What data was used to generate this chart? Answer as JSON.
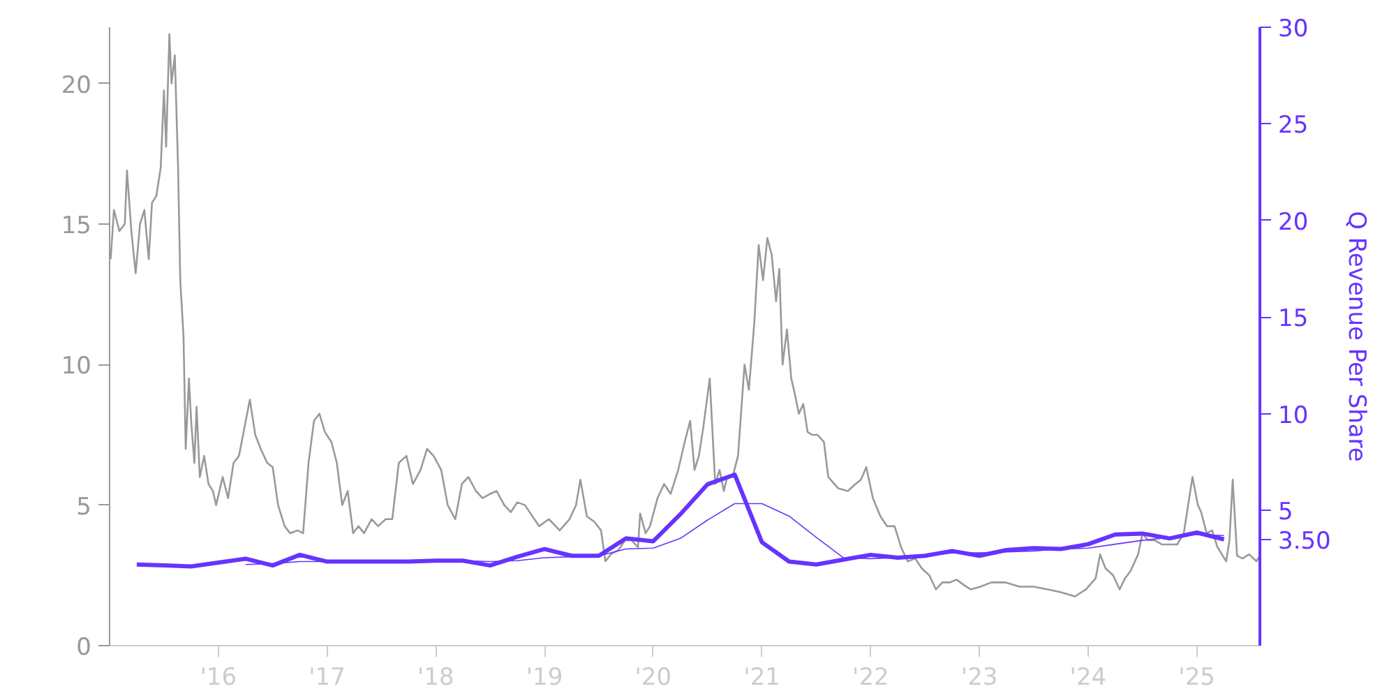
{
  "chart_data": {
    "type": "line",
    "y2label": "Q Revenue Per Share",
    "xlim": [
      2015.0,
      2025.58
    ],
    "xticks": [
      {
        "value": 2016,
        "label": "'16"
      },
      {
        "value": 2017,
        "label": "'17"
      },
      {
        "value": 2018,
        "label": "'18"
      },
      {
        "value": 2019,
        "label": "'19"
      },
      {
        "value": 2020,
        "label": "'20"
      },
      {
        "value": 2021,
        "label": "'21"
      },
      {
        "value": 2022,
        "label": "'22"
      },
      {
        "value": 2023,
        "label": "'23"
      },
      {
        "value": 2024,
        "label": "'24"
      },
      {
        "value": 2025,
        "label": "'25"
      }
    ],
    "ylim": [
      0,
      22
    ],
    "yticks": [
      0,
      5,
      10,
      15,
      20
    ],
    "y2lim": [
      -2,
      30
    ],
    "y2ticks": [
      {
        "value": 3.5,
        "label": "3.50"
      },
      5,
      10,
      15,
      20,
      25,
      30
    ],
    "series": [
      {
        "color": "#999999",
        "axis": "y",
        "x": [
          2015.01,
          2015.04,
          2015.09,
          2015.14,
          2015.16,
          2015.2,
          2015.24,
          2015.28,
          2015.32,
          2015.36,
          2015.39,
          2015.43,
          2015.47,
          2015.5,
          2015.52,
          2015.55,
          2015.57,
          2015.6,
          2015.63,
          2015.65,
          2015.68,
          2015.7,
          2015.73,
          2015.75,
          2015.78,
          2015.8,
          2015.83,
          2015.87,
          2015.91,
          2015.95,
          2015.98,
          2016.04,
          2016.09,
          2016.14,
          2016.19,
          2016.24,
          2016.29,
          2016.34,
          2016.39,
          2016.45,
          2016.5,
          2016.55,
          2016.61,
          2016.66,
          2016.73,
          2016.78,
          2016.83,
          2016.88,
          2016.93,
          2016.98,
          2017.04,
          2017.09,
          2017.14,
          2017.19,
          2017.24,
          2017.29,
          2017.34,
          2017.41,
          2017.47,
          2017.54,
          2017.6,
          2017.66,
          2017.73,
          2017.79,
          2017.86,
          2017.92,
          2017.98,
          2018.05,
          2018.11,
          2018.18,
          2018.24,
          2018.3,
          2018.37,
          2018.43,
          2018.5,
          2018.56,
          2018.63,
          2018.69,
          2018.75,
          2018.82,
          2018.95,
          2019.04,
          2019.14,
          2019.23,
          2019.29,
          2019.33,
          2019.39,
          2019.46,
          2019.52,
          2019.56,
          2019.61,
          2019.68,
          2019.74,
          2019.8,
          2019.86,
          2019.88,
          2019.93,
          2019.97,
          2020.04,
          2020.1,
          2020.16,
          2020.23,
          2020.29,
          2020.34,
          2020.38,
          2020.42,
          2020.46,
          2020.52,
          2020.57,
          2020.61,
          2020.65,
          2020.68,
          2020.73,
          2020.78,
          2020.84,
          2020.88,
          2020.93,
          2020.97,
          2021.01,
          2021.05,
          2021.09,
          2021.13,
          2021.16,
          2021.19,
          2021.23,
          2021.27,
          2021.3,
          2021.34,
          2021.38,
          2021.42,
          2021.46,
          2021.51,
          2021.57,
          2021.61,
          2021.7,
          2021.79,
          2021.86,
          2021.91,
          2021.96,
          2022.02,
          2022.09,
          2022.15,
          2022.22,
          2022.28,
          2022.34,
          2022.41,
          2022.47,
          2022.54,
          2022.6,
          2022.66,
          2022.73,
          2022.79,
          2022.86,
          2022.92,
          2023.01,
          2023.11,
          2023.24,
          2023.37,
          2023.5,
          2023.63,
          2023.75,
          2023.88,
          2023.98,
          2024.07,
          2024.11,
          2024.16,
          2024.23,
          2024.29,
          2024.34,
          2024.39,
          2024.46,
          2024.5,
          2024.55,
          2024.61,
          2024.68,
          2024.75,
          2024.82,
          2024.88,
          2024.93,
          2024.96,
          2025.01,
          2025.04,
          2025.09,
          2025.14,
          2025.19,
          2025.27,
          2025.3,
          2025.33,
          2025.37,
          2025.42,
          2025.48,
          2025.55,
          2025.57
        ],
        "values": [
          13.75,
          15.5,
          14.75,
          15,
          16.9,
          14.75,
          13.25,
          15,
          15.5,
          13.75,
          15.75,
          16,
          17,
          19.75,
          17.75,
          21.75,
          20,
          21,
          17,
          13,
          11,
          7,
          9.5,
          8,
          6.5,
          8.5,
          6,
          6.75,
          5.75,
          5.5,
          5,
          6,
          5.25,
          6.5,
          6.75,
          7.75,
          8.75,
          7.5,
          7,
          6.5,
          6.35,
          5,
          4.25,
          4,
          4.1,
          4,
          6.5,
          8,
          8.25,
          7.6,
          7.25,
          6.5,
          5,
          5.5,
          4,
          4.25,
          4,
          4.5,
          4.25,
          4.5,
          4.5,
          6.5,
          6.75,
          5.75,
          6.25,
          7,
          6.75,
          6.25,
          5,
          4.5,
          5.75,
          6,
          5.5,
          5.25,
          5.4,
          5.5,
          5,
          4.75,
          5.1,
          5,
          4.25,
          4.5,
          4.1,
          4.5,
          5,
          5.9,
          4.6,
          4.4,
          4.1,
          3,
          3.25,
          3.4,
          3.75,
          3.75,
          3.5,
          4.7,
          4,
          4.25,
          5.25,
          5.75,
          5.4,
          6.25,
          7.25,
          8,
          6.25,
          6.75,
          7.75,
          9.5,
          5.75,
          6.25,
          5.5,
          6,
          6,
          6.75,
          10,
          9.1,
          11.5,
          14.25,
          13,
          14.5,
          13.9,
          12.25,
          13.4,
          10,
          11.25,
          9.5,
          9,
          8.25,
          8.6,
          7.6,
          7.5,
          7.5,
          7.25,
          6,
          5.6,
          5.5,
          5.75,
          5.9,
          6.35,
          5.25,
          4.6,
          4.25,
          4.25,
          3.5,
          3,
          3.1,
          2.75,
          2.5,
          2,
          2.25,
          2.25,
          2.35,
          2.15,
          2,
          2.1,
          2.25,
          2.25,
          2.1,
          2.1,
          2,
          1.9,
          1.75,
          2,
          2.4,
          3.25,
          2.75,
          2.5,
          2,
          2.4,
          2.65,
          3.25,
          4,
          3.75,
          3.75,
          3.6,
          3.6,
          3.6,
          4,
          5.25,
          6,
          5,
          4.75,
          4,
          4.1,
          3.5,
          3,
          3.75,
          5.9,
          3.2,
          3.1,
          3.25,
          3,
          3.15
        ]
      },
      {
        "color": "#6633ff",
        "axis": "y2",
        "x": [
          2015.25,
          2015.5,
          2015.75,
          2016.0,
          2016.25,
          2016.5,
          2016.75,
          2017.0,
          2017.25,
          2017.5,
          2017.75,
          2018.0,
          2018.25,
          2018.5,
          2018.75,
          2019.0,
          2019.25,
          2019.5,
          2019.75,
          2020.0,
          2020.25,
          2020.5,
          2020.75,
          2021.0,
          2021.25,
          2021.5,
          2021.75,
          2022.0,
          2022.25,
          2022.5,
          2022.75,
          2023.0,
          2023.25,
          2023.5,
          2023.75,
          2024.0,
          2024.25,
          2024.5,
          2024.75,
          2025.0,
          2025.25
        ],
        "values": [
          2.2,
          2.15,
          2.1,
          2.3,
          2.5,
          2.15,
          2.7,
          2.35,
          2.35,
          2.35,
          2.35,
          2.4,
          2.4,
          2.15,
          2.6,
          3.0,
          2.65,
          2.65,
          3.55,
          3.4,
          4.8,
          6.35,
          6.85,
          3.35,
          2.35,
          2.2,
          2.45,
          2.7,
          2.55,
          2.65,
          2.9,
          2.65,
          2.95,
          3.05,
          3.0,
          3.25,
          3.75,
          3.8,
          3.55,
          3.85,
          3.5
        ]
      },
      {
        "color": "#6633ff",
        "axis": "y2",
        "x": [
          2016.25,
          2016.5,
          2016.75,
          2017.0,
          2017.25,
          2017.5,
          2017.75,
          2018.0,
          2018.25,
          2018.5,
          2018.75,
          2019.0,
          2019.25,
          2019.5,
          2019.75,
          2020.0,
          2020.25,
          2020.5,
          2020.75,
          2021.0,
          2021.25,
          2021.5,
          2021.75,
          2022.0,
          2022.25,
          2022.5,
          2022.75,
          2023.0,
          2023.25,
          2023.5,
          2023.75,
          2024.0,
          2024.25,
          2024.5,
          2024.75,
          2025.0,
          2025.25
        ],
        "values": [
          2.2,
          2.25,
          2.35,
          2.35,
          2.4,
          2.4,
          2.35,
          2.35,
          2.4,
          2.35,
          2.4,
          2.55,
          2.6,
          2.65,
          3.0,
          3.05,
          3.55,
          4.5,
          5.35,
          5.35,
          4.7,
          3.6,
          2.55,
          2.5,
          2.55,
          2.65,
          2.8,
          2.8,
          2.85,
          2.9,
          3.0,
          3.05,
          3.25,
          3.45,
          3.6,
          3.75,
          3.7
        ]
      }
    ]
  }
}
